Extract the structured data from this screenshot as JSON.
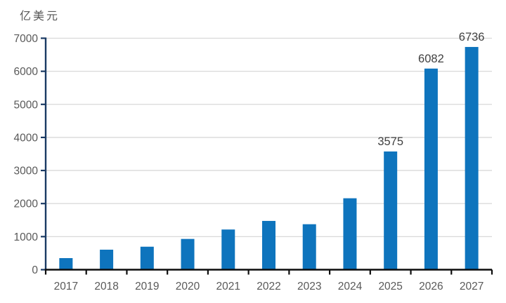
{
  "chart_data": {
    "type": "bar",
    "title": "",
    "unit_label": "亿美元",
    "xlabel": "",
    "ylabel": "亿美元",
    "categories": [
      "2017",
      "2018",
      "2019",
      "2020",
      "2021",
      "2022",
      "2023",
      "2024",
      "2025",
      "2026",
      "2027"
    ],
    "values": [
      350,
      605,
      695,
      930,
      1215,
      1475,
      1375,
      2160,
      3575,
      6082,
      6736
    ],
    "data_labels": [
      null,
      null,
      null,
      null,
      null,
      null,
      null,
      null,
      "3575",
      "6082",
      "6736"
    ],
    "ylim": [
      0,
      7000
    ],
    "ytick_interval": 1000,
    "ytick_labels": [
      "0",
      "1000",
      "2000",
      "3000",
      "4000",
      "5000",
      "6000",
      "7000"
    ],
    "grid": true,
    "legend_position": "none",
    "colors": {
      "bar": "#0E74BD",
      "gridline": "#D9D9D9",
      "y_axis": "#1A3A63",
      "x_axis": "#0D0D0D",
      "tick_label": "#595959",
      "data_label": "#404040"
    }
  }
}
